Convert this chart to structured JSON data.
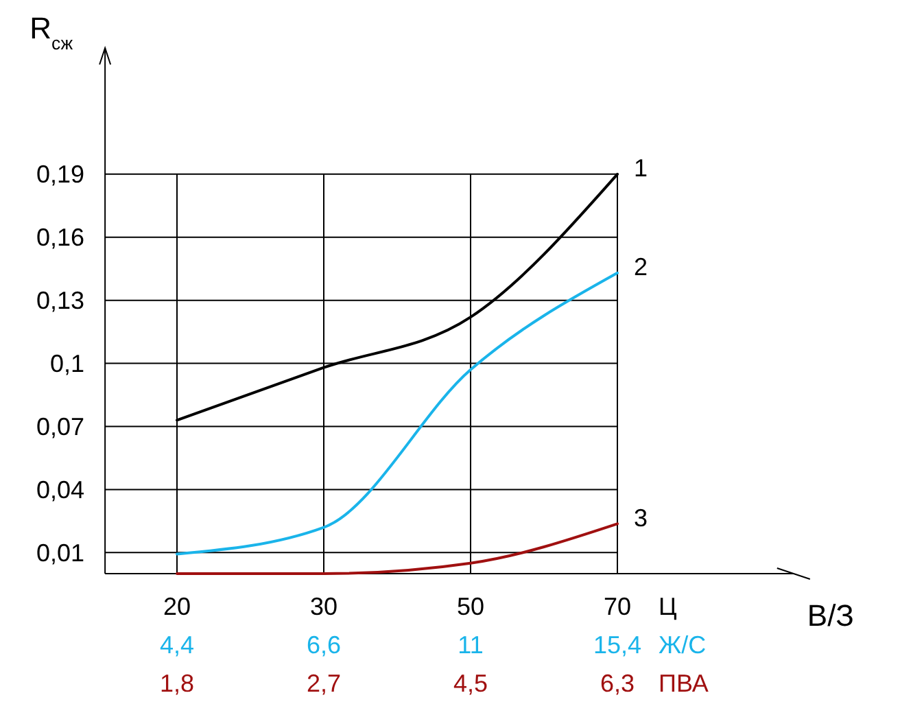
{
  "chart_data": {
    "type": "line",
    "ylabel": "R$_{сж}$",
    "xlabel": "Ц",
    "annotations": [
      "В/З",
      "4,4",
      "6,6",
      "11",
      "15,4",
      "Ж/С",
      "1,8",
      "2,7",
      "4,5",
      "6,3",
      "ПВА"
    ],
    "categories": [
      "20",
      "30",
      "50",
      "70"
    ],
    "ylim": [
      0,
      0.25
    ],
    "yticks": [
      {
        "value": 0.01,
        "label": "0,01"
      },
      {
        "value": 0.04,
        "label": "0,04"
      },
      {
        "value": 0.07,
        "label": "0,07"
      },
      {
        "value": 0.1,
        "label": "0,1"
      },
      {
        "value": 0.13,
        "label": "0,13"
      },
      {
        "value": 0.16,
        "label": "0,16"
      },
      {
        "value": 0.19,
        "label": "0,19"
      }
    ],
    "grid": true,
    "marker": "none",
    "line_style": "solid",
    "series": [
      {
        "name": "1",
        "color": "#000000",
        "values": [
          0.073,
          0.098,
          0.122,
          0.19
        ]
      },
      {
        "name": "2",
        "color": "#1ab4ea",
        "values": [
          0.0093,
          0.022,
          0.097,
          0.143
        ]
      },
      {
        "name": "3",
        "color": "#a01010",
        "values": [
          0,
          0,
          0.005,
          0.0237
        ]
      }
    ]
  }
}
